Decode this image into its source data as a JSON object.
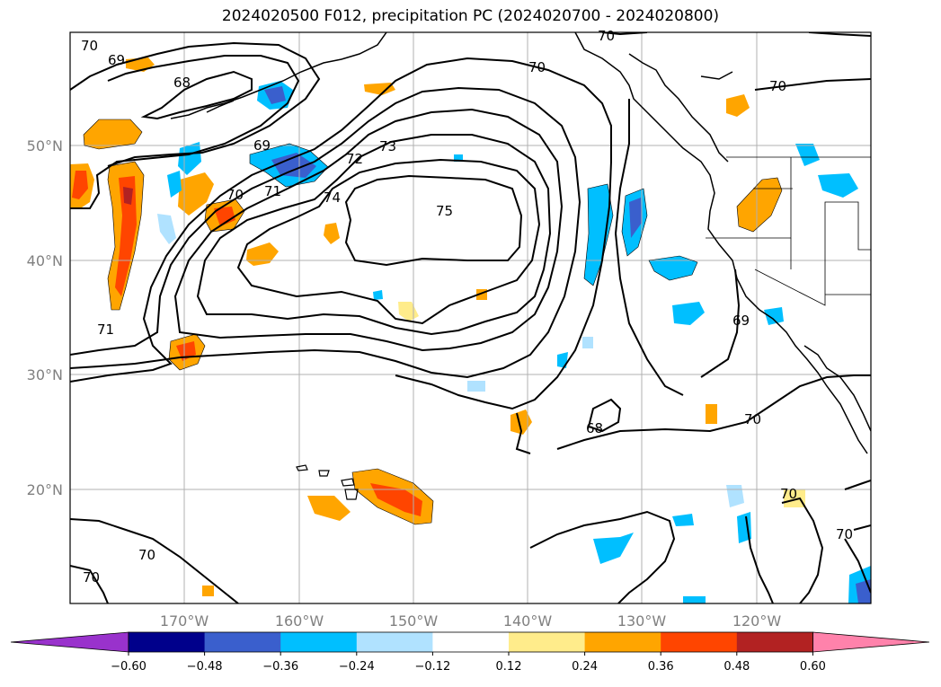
{
  "title": "2024020500 F012, precipitation PC (2024020700 - 2024020800)",
  "map": {
    "lon_labels": [
      "170°W",
      "160°W",
      "150°W",
      "140°W",
      "130°W",
      "120°W"
    ],
    "lat_labels": [
      "50°N",
      "40°N",
      "30°N",
      "20°N"
    ],
    "contour_labels": [
      "70",
      "69",
      "68",
      "69",
      "70",
      "71",
      "72",
      "73",
      "74",
      "75",
      "70",
      "70",
      "68",
      "70",
      "71",
      "70",
      "69",
      "70",
      "70",
      "70",
      "70"
    ]
  },
  "colorbar": {
    "ticks": [
      "−0.60",
      "−0.48",
      "−0.36",
      "−0.24",
      "−0.12",
      "0.12",
      "0.24",
      "0.36",
      "0.48",
      "0.60"
    ],
    "colors": [
      "#9932cc",
      "#00008b",
      "#3a5fcd",
      "#00bfff",
      "#b0e2ff",
      "#ffffff",
      "#ffec8b",
      "#ffa500",
      "#ff4500",
      "#b22222",
      "#ff82ab"
    ]
  }
}
